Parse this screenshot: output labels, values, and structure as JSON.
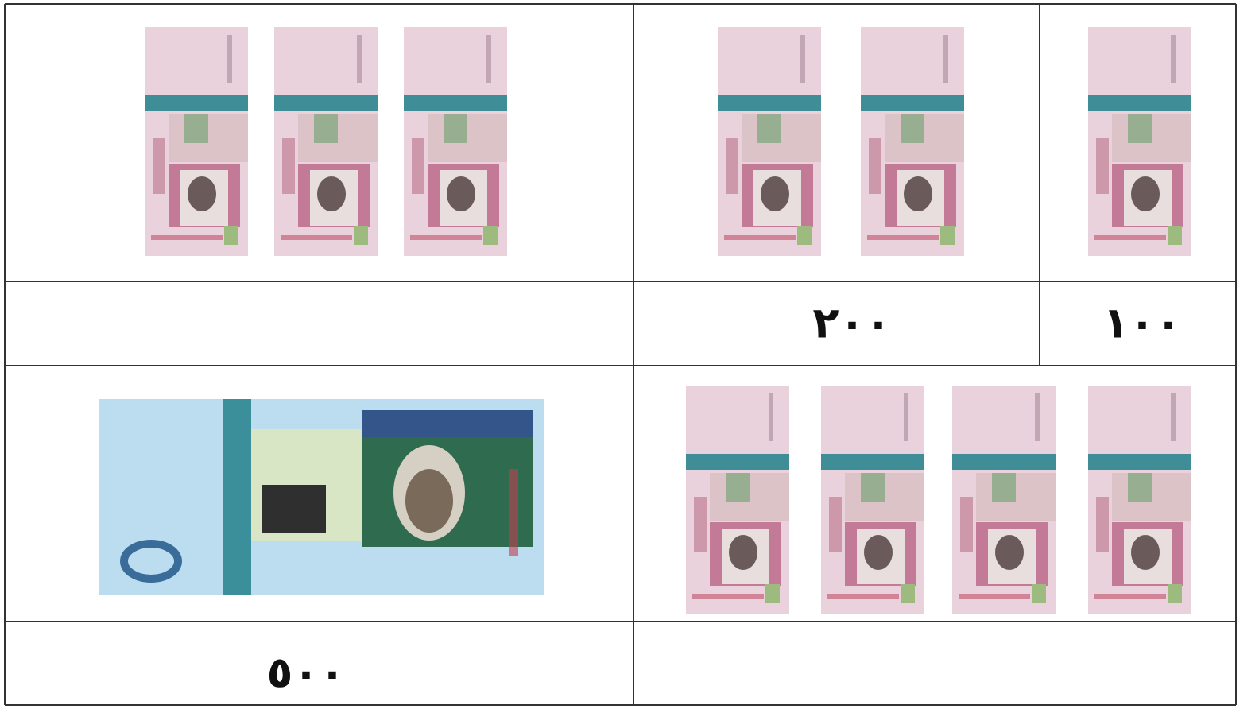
{
  "worksheet": {
    "labels": [
      "١٠٠",
      "٢٠٠",
      "٥٠٠"
    ]
  }
}
